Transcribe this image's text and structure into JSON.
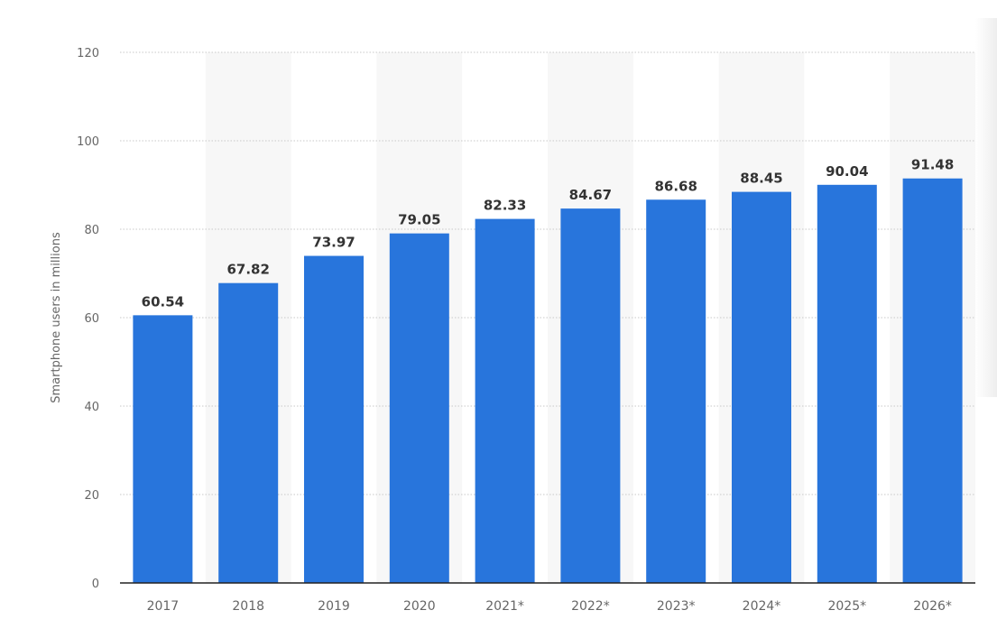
{
  "chart_data": {
    "type": "bar",
    "categories": [
      "2017",
      "2018",
      "2019",
      "2020",
      "2021*",
      "2022*",
      "2023*",
      "2024*",
      "2025*",
      "2026*"
    ],
    "values": [
      60.54,
      67.82,
      73.97,
      79.05,
      82.33,
      84.67,
      86.68,
      88.45,
      90.04,
      91.48
    ],
    "value_labels": [
      "60.54",
      "67.82",
      "73.97",
      "79.05",
      "82.33",
      "84.67",
      "86.68",
      "88.45",
      "90.04",
      "91.48"
    ],
    "title": "",
    "xlabel": "",
    "ylabel": "Smartphone users in millions",
    "ylim": [
      0,
      120
    ],
    "yticks": [
      0,
      20,
      40,
      60,
      80,
      100,
      120
    ],
    "grid": true,
    "legend": "none"
  },
  "colors": {
    "bar": "#2875dc",
    "band": "#f7f7f7",
    "grid": "#c8c8c8",
    "axis": "#222222"
  }
}
